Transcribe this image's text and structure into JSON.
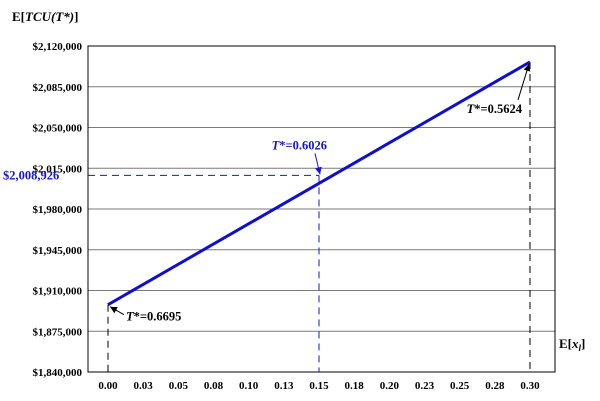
{
  "chart_data": {
    "type": "line",
    "ylabel": "E[TCU(T*)]",
    "xlabel": "E[x_l]",
    "x_ticks": [
      "0.00",
      "0.03",
      "0.05",
      "0.08",
      "0.10",
      "0.13",
      "0.15",
      "0.18",
      "0.20",
      "0.23",
      "0.25",
      "0.28",
      "0.30"
    ],
    "xlim": [
      0.0,
      0.3
    ],
    "y_ticks": [
      "$1,840,000",
      "$1,875,000",
      "$1,910,000",
      "$1,945,000",
      "$1,980,000",
      "$2,015,000",
      "$2,050,000",
      "$2,085,000",
      "$2,120,000"
    ],
    "ylim": [
      1840000,
      2120000
    ],
    "grid": "horizontal",
    "series": [
      {
        "x": [
          0.0,
          0.3
        ],
        "y": [
          1897800,
          2106300
        ],
        "color": "#1010cc"
      }
    ],
    "annotations": [
      {
        "prefix": "T",
        "suffix": "*=0.6695",
        "x": 0.0,
        "y": 1897800,
        "color": "#000000",
        "position": "below-right"
      },
      {
        "prefix": "T",
        "suffix": "*=0.6026",
        "x": 0.15,
        "y": 2008926,
        "color": "#1515d0",
        "position": "above-left"
      },
      {
        "prefix": "T",
        "suffix": "*=0.5624",
        "x": 0.3,
        "y": 2106300,
        "color": "#000000",
        "position": "below-left"
      }
    ],
    "highlight": {
      "x": 0.15,
      "y": 2008926,
      "y_label": "$2,008,926",
      "color": "#1515d0"
    }
  }
}
